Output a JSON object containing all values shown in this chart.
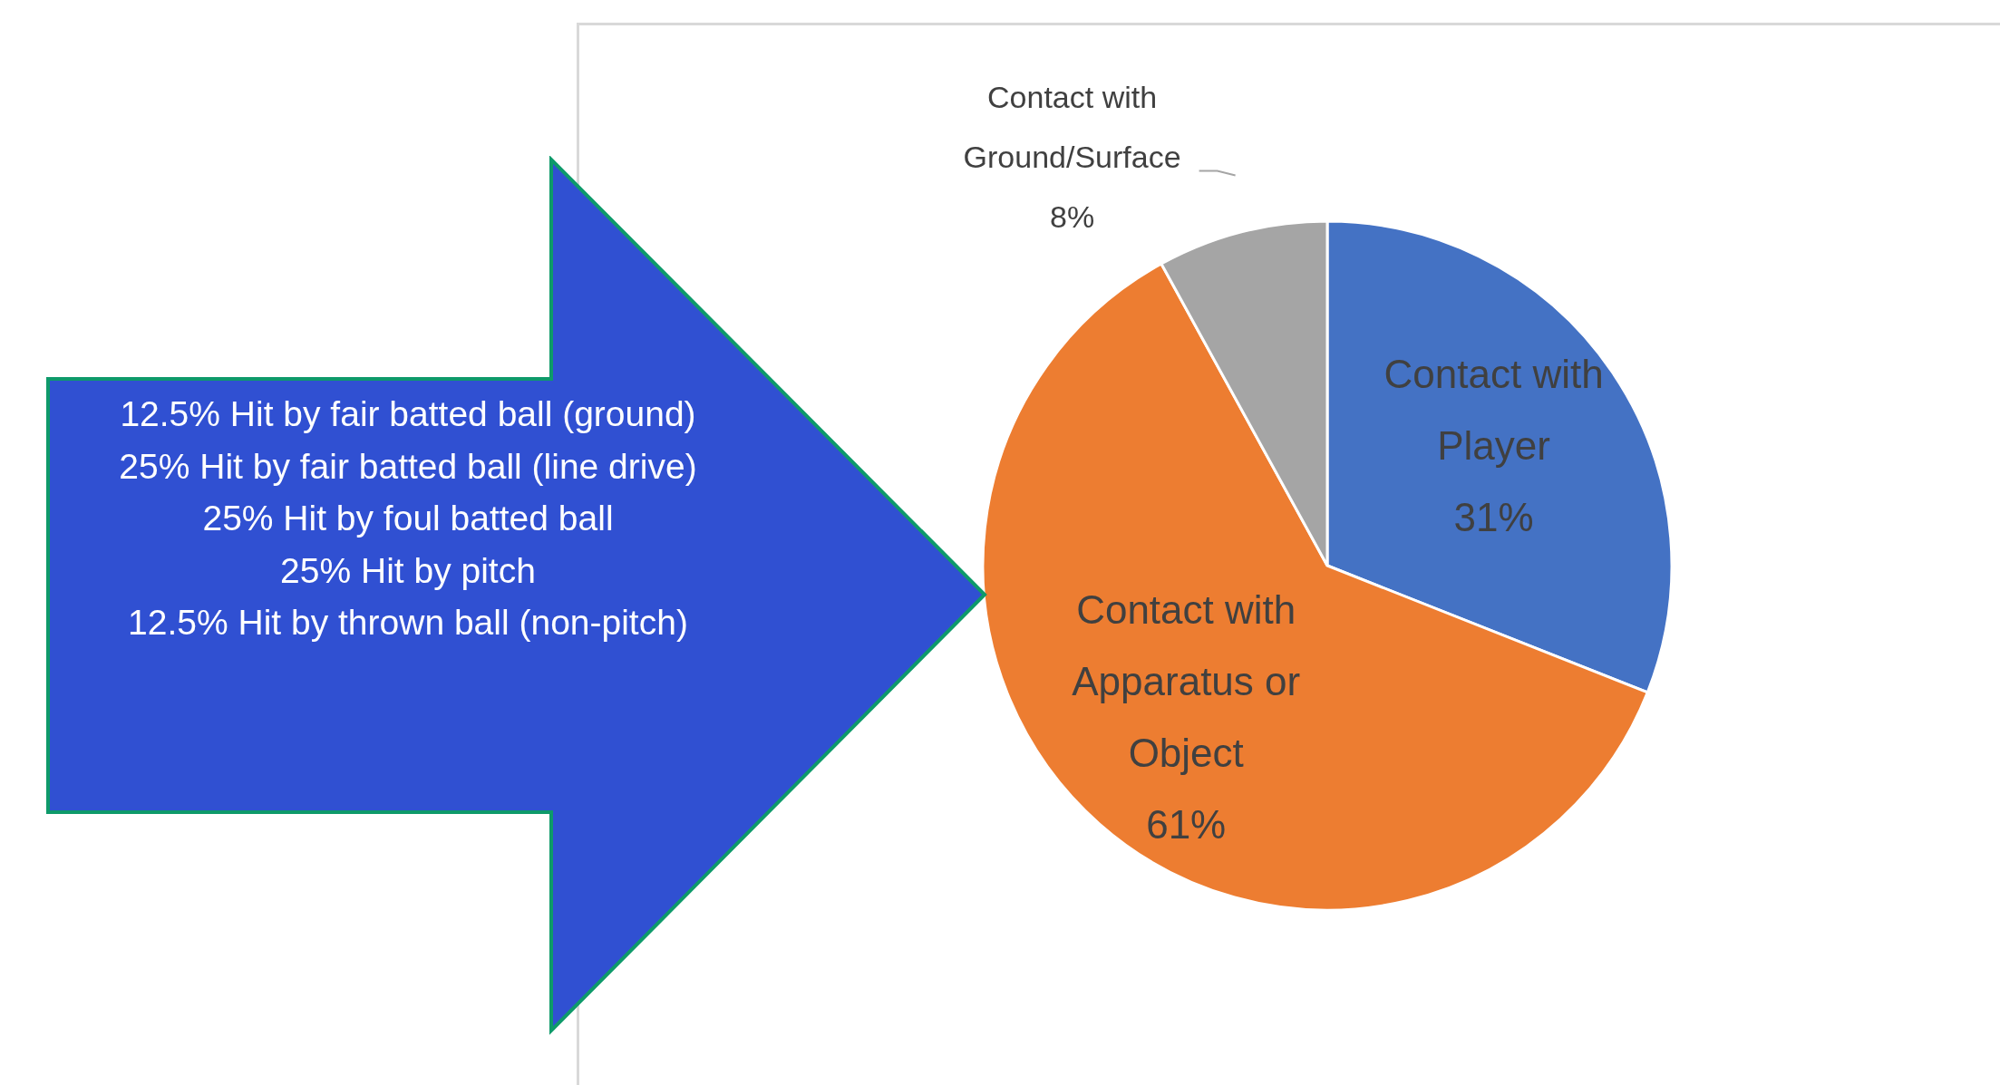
{
  "chart_data": {
    "type": "pie",
    "categories": [
      "Contact with Player",
      "Contact with Apparatus or Object",
      "Contact with Ground/Surface"
    ],
    "values": [
      31,
      61,
      8
    ],
    "colors": [
      "#4472c4",
      "#ed7d31",
      "#a5a5a5"
    ],
    "value_labels": [
      "31%",
      "61%",
      "8%"
    ],
    "annotations": [
      "12.5% Hit by fair batted ball (ground)",
      "25% Hit by fair batted ball (line drive)",
      "25% Hit by foul batted ball",
      "25% Hit by pitch",
      "12.5% Hit by thrown ball (non-pitch)"
    ]
  }
}
